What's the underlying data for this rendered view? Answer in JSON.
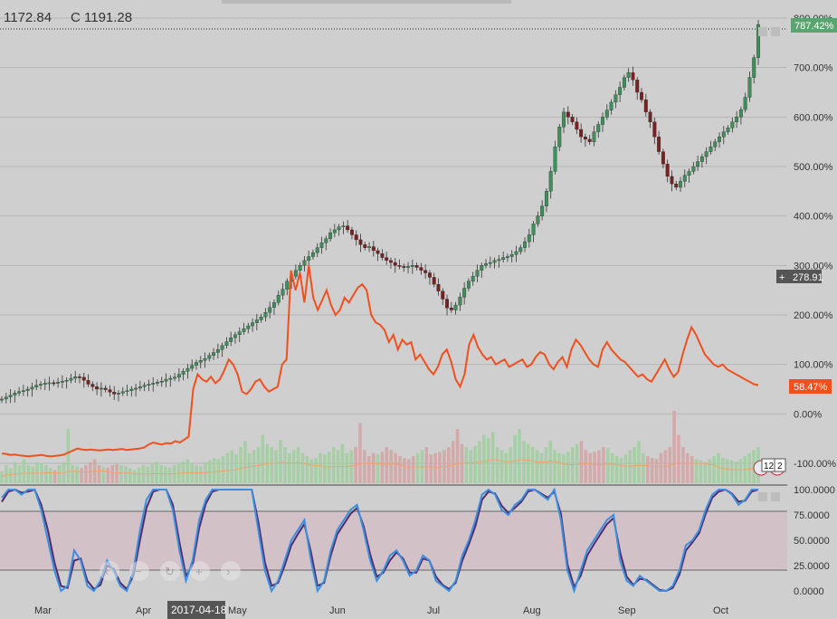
{
  "header": {
    "value_a": "1172.84",
    "value_b": "C 1191.28"
  },
  "badges": {
    "last_pct": "787.42%",
    "price": "278.91",
    "orange_pct": "58.47%"
  },
  "flags": {
    "count_a": "12",
    "count_b": "2"
  },
  "cursor_date": "2017-04-18",
  "colors": {
    "background": "#cfcfcf",
    "up_candle": "#3f8f5a",
    "down_candle": "#7a2222",
    "orange_line": "#f0501e",
    "volume_up": "#9fcf9f",
    "volume_down": "#d4a3a3",
    "stoch_k": "#3a8fe0",
    "stoch_d": "#552a6a",
    "stoch_band": "#d3bcc4",
    "badge_green": "#5aa56f",
    "badge_orange": "#f0501e",
    "badge_gray": "#555555"
  },
  "icons": [
    "prev-icon",
    "zoom-out-icon",
    "reset-icon",
    "zoom-in-icon",
    "next-icon",
    "plus-icon",
    "us-flag-icon"
  ],
  "chart_data": [
    {
      "type": "line",
      "x_ticks": [
        "Mar",
        "Apr",
        "May",
        "Jun",
        "Jul",
        "Aug",
        "Sep",
        "Oct"
      ],
      "y_ticks": [
        "800.00%",
        "700.00%",
        "600.00%",
        "500.00%",
        "400.00%",
        "300.00%",
        "200.00%",
        "100.00%",
        "0.00%",
        "-100.00%"
      ],
      "ylim": [
        -100,
        800
      ],
      "series": [
        {
          "kind": "candle",
          "values": [
            30,
            34,
            38,
            42,
            45,
            47,
            50,
            54,
            58,
            60,
            62,
            63,
            62,
            64,
            66,
            68,
            72,
            75,
            74,
            68,
            60,
            55,
            50,
            52,
            49,
            44,
            40,
            42,
            45,
            47,
            50,
            52,
            55,
            58,
            60,
            62,
            64,
            66,
            70,
            72,
            74,
            80,
            86,
            92,
            98,
            104,
            108,
            112,
            118,
            124,
            130,
            138,
            146,
            154,
            160,
            166,
            172,
            178,
            184,
            190,
            196,
            205,
            215,
            225,
            240,
            252,
            268,
            278,
            290,
            300,
            310,
            318,
            326,
            336,
            346,
            354,
            366,
            372,
            378,
            380,
            372,
            362,
            352,
            342,
            336,
            338,
            330,
            324,
            316,
            310,
            306,
            300,
            298,
            296,
            298,
            300,
            296,
            290,
            285,
            276,
            262,
            248,
            232,
            214,
            210,
            220,
            236,
            254,
            268,
            278,
            290,
            300,
            304,
            306,
            310,
            312,
            316,
            318,
            322,
            328,
            336,
            348,
            362,
            384,
            400,
            420,
            450,
            490,
            540,
            580,
            610,
            600,
            590,
            575,
            560,
            555,
            550,
            570,
            585,
            600,
            614,
            630,
            645,
            660,
            680,
            690,
            675,
            650,
            635,
            610,
            590,
            560,
            530,
            505,
            480,
            465,
            458,
            470,
            482,
            490,
            500,
            510,
            520,
            530,
            540,
            550,
            560,
            570,
            578,
            590,
            600,
            615,
            640,
            680,
            720,
            787
          ]
        },
        {
          "kind": "line",
          "values": [
            -80,
            -81,
            -83,
            -82,
            -84,
            -85,
            -86,
            -85,
            -84,
            -83,
            -85,
            -86,
            -85,
            -84,
            -82,
            -78,
            -74,
            -70,
            -72,
            -73,
            -72,
            -73,
            -74,
            -73,
            -72,
            -73,
            -72,
            -71,
            -73,
            -72,
            -71,
            -70,
            -68,
            -62,
            -58,
            -60,
            -62,
            -59,
            -60,
            -55,
            -58,
            -52,
            -46,
            50,
            80,
            70,
            65,
            75,
            62,
            70,
            88,
            110,
            100,
            80,
            45,
            40,
            50,
            65,
            70,
            55,
            45,
            50,
            55,
            100,
            110,
            290,
            250,
            285,
            225,
            300,
            235,
            210,
            230,
            250,
            220,
            200,
            210,
            235,
            225,
            240,
            255,
            262,
            250,
            200,
            185,
            180,
            170,
            145,
            160,
            130,
            150,
            140,
            145,
            110,
            120,
            105,
            90,
            80,
            95,
            120,
            130,
            105,
            70,
            55,
            80,
            140,
            160,
            135,
            120,
            110,
            115,
            100,
            105,
            110,
            95,
            100,
            105,
            110,
            95,
            100,
            115,
            125,
            120,
            100,
            90,
            105,
            115,
            95,
            130,
            150,
            140,
            125,
            110,
            100,
            95,
            130,
            145,
            130,
            120,
            110,
            105,
            95,
            85,
            75,
            80,
            70,
            65,
            80,
            95,
            110,
            90,
            75,
            85,
            120,
            150,
            175,
            160,
            140,
            120,
            110,
            100,
            95,
            100,
            90,
            85,
            80,
            75,
            70,
            65,
            60,
            58
          ]
        },
        {
          "kind": "volume",
          "values": [
            0.2,
            0.3,
            0.25,
            0.35,
            0.3,
            0.4,
            0.3,
            0.28,
            0.35,
            0.32,
            0.3,
            0.25,
            0.22,
            0.3,
            0.35,
            0.9,
            0.3,
            0.28,
            0.25,
            0.3,
            0.35,
            0.4,
            0.3,
            0.28,
            0.26,
            0.3,
            0.32,
            0.3,
            0.28,
            0.25,
            0.22,
            0.26,
            0.3,
            0.28,
            0.32,
            0.35,
            0.3,
            0.28,
            0.26,
            0.3,
            0.34,
            0.36,
            0.4,
            0.32,
            0.3,
            0.28,
            0.35,
            0.38,
            0.42,
            0.4,
            0.45,
            0.5,
            0.55,
            0.48,
            0.6,
            0.7,
            0.5,
            0.55,
            0.6,
            0.8,
            0.65,
            0.6,
            0.55,
            0.72,
            0.6,
            0.5,
            0.55,
            0.6,
            0.5,
            0.45,
            0.4,
            0.42,
            0.5,
            0.48,
            0.52,
            0.6,
            0.55,
            0.65,
            0.5,
            0.55,
            0.6,
            1.0,
            0.55,
            0.45,
            0.5,
            0.48,
            0.52,
            0.6,
            0.55,
            0.5,
            0.45,
            0.42,
            0.4,
            0.45,
            0.5,
            0.55,
            0.6,
            0.48,
            0.5,
            0.52,
            0.55,
            0.6,
            0.7,
            0.9,
            0.65,
            0.6,
            0.55,
            0.62,
            0.7,
            0.8,
            0.75,
            0.85,
            0.6,
            0.55,
            0.5,
            0.6,
            0.8,
            0.9,
            0.7,
            0.65,
            0.6,
            0.55,
            0.5,
            0.6,
            0.7,
            0.55,
            0.5,
            0.48,
            0.52,
            0.6,
            0.65,
            0.7,
            0.55,
            0.5,
            0.52,
            0.55,
            0.6,
            0.58,
            0.5,
            0.45,
            0.42,
            0.48,
            0.55,
            0.6,
            0.7,
            0.5,
            0.45,
            0.42,
            0.4,
            0.5,
            0.55,
            0.6,
            1.2,
            0.8,
            0.6,
            0.5,
            0.45,
            0.4,
            0.38,
            0.35,
            0.4,
            0.45,
            0.5,
            0.42,
            0.4,
            0.38,
            0.36,
            0.4,
            0.45,
            0.5,
            0.55,
            0.6
          ]
        },
        {
          "kind": "stoch_k",
          "values": [
            92,
            100,
            100,
            95,
            100,
            100,
            80,
            50,
            20,
            0,
            5,
            40,
            30,
            5,
            0,
            10,
            30,
            20,
            5,
            0,
            20,
            60,
            90,
            100,
            100,
            100,
            80,
            40,
            10,
            30,
            70,
            90,
            100,
            100,
            100,
            100,
            100,
            100,
            100,
            60,
            20,
            0,
            10,
            30,
            50,
            60,
            70,
            30,
            0,
            10,
            40,
            60,
            70,
            80,
            85,
            60,
            30,
            10,
            20,
            35,
            40,
            30,
            15,
            20,
            35,
            30,
            10,
            5,
            0,
            10,
            35,
            50,
            70,
            95,
            100,
            95,
            80,
            75,
            85,
            90,
            100,
            100,
            95,
            90,
            100,
            70,
            20,
            0,
            20,
            40,
            50,
            60,
            70,
            75,
            30,
            10,
            5,
            15,
            10,
            5,
            0,
            0,
            5,
            20,
            45,
            50,
            60,
            80,
            95,
            100,
            100,
            95,
            85,
            90,
            100,
            100
          ]
        },
        {
          "kind": "stoch_d",
          "values": [
            88,
            98,
            100,
            97,
            98,
            100,
            85,
            60,
            28,
            5,
            3,
            30,
            32,
            10,
            2,
            6,
            25,
            22,
            8,
            2,
            15,
            50,
            82,
            98,
            100,
            100,
            85,
            48,
            15,
            25,
            62,
            86,
            98,
            100,
            100,
            100,
            100,
            100,
            100,
            68,
            28,
            5,
            8,
            25,
            45,
            56,
            66,
            38,
            5,
            8,
            35,
            56,
            66,
            76,
            82,
            64,
            36,
            14,
            18,
            30,
            38,
            32,
            18,
            18,
            32,
            30,
            14,
            6,
            2,
            8,
            30,
            46,
            64,
            90,
            98,
            96,
            84,
            77,
            82,
            88,
            98,
            100,
            96,
            92,
            98,
            76,
            26,
            4,
            15,
            35,
            46,
            56,
            66,
            72,
            38,
            14,
            6,
            12,
            11,
            6,
            1,
            0,
            3,
            16,
            40,
            48,
            57,
            76,
            92,
            98,
            100,
            96,
            88,
            89,
            98,
            100
          ]
        }
      ]
    },
    {
      "type": "line",
      "title": "",
      "y_ticks": [
        "100.0000",
        "75.0000",
        "50.0000",
        "25.0000",
        "0.0000"
      ],
      "ylim": [
        0,
        100
      ],
      "band": [
        20,
        80
      ]
    }
  ]
}
